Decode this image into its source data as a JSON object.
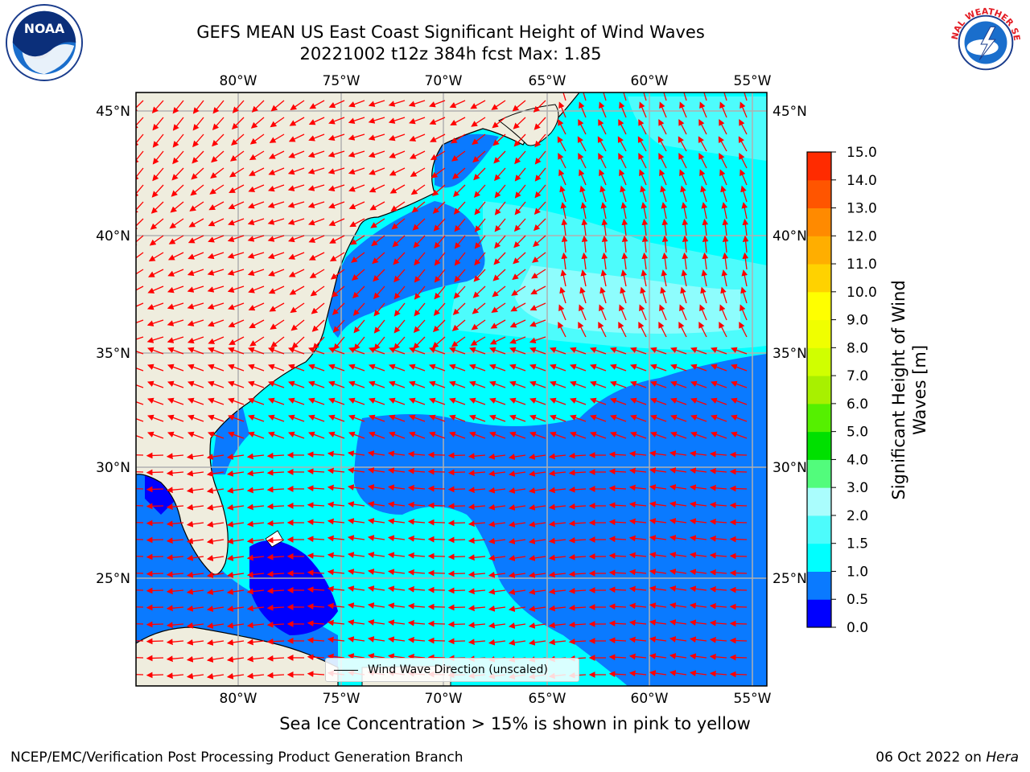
{
  "header": {
    "title_line1": "GEFS MEAN US East Coast Significant Height of Wind Waves",
    "title_line2": "20221002 t12z 384h fcst   Max: 1.85"
  },
  "map": {
    "lon_labels": [
      "80°W",
      "75°W",
      "70°W",
      "65°W",
      "60°W",
      "55°W"
    ],
    "lat_labels": [
      "45°N",
      "40°N",
      "35°N",
      "30°N",
      "25°N"
    ],
    "legend_label": "Wind Wave Direction (unscaled)",
    "colors": {
      "land": "#efedde",
      "arrow": "#ff0000",
      "grid": "#b0b0b0"
    }
  },
  "colorbar": {
    "label": "Significant Height of Wind Waves [m]",
    "label_line1": "Significant Height of Wind",
    "label_line2": "Waves [m]",
    "ticks": [
      "0.0",
      "0.5",
      "1.0",
      "1.5",
      "2.0",
      "3.0",
      "4.0",
      "5.0",
      "6.0",
      "7.0",
      "8.0",
      "9.0",
      "10.0",
      "11.0",
      "12.0",
      "13.0",
      "14.0",
      "15.0"
    ],
    "colors": [
      "#0000ff",
      "#0a7aff",
      "#00ffff",
      "#4dfcfc",
      "#aafdfd",
      "#52fc7c",
      "#00e000",
      "#55f000",
      "#a8f000",
      "#d0ff00",
      "#f0ff00",
      "#ffff00",
      "#ffd200",
      "#ffae00",
      "#ff8a00",
      "#ff5500",
      "#ff2b00",
      "#ff0000"
    ]
  },
  "footer": {
    "note": "Sea Ice Concentration > 15% is shown in pink to yellow",
    "credit": "NCEP/EMC/Verification Post Processing Product Generation Branch",
    "date": "06 Oct 2022 on",
    "host": "Hera"
  },
  "logos": {
    "noaa_text": "NOAA",
    "nws_text": "NATIONAL WEATHER SERVICE"
  }
}
